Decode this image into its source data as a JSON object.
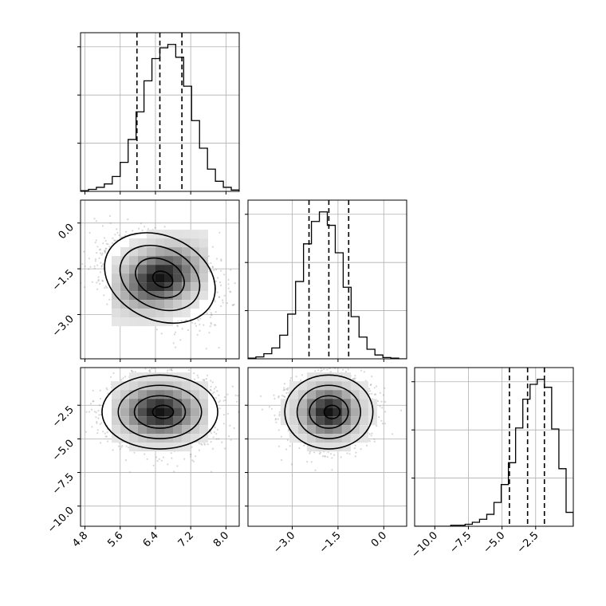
{
  "chart_data": {
    "type": "corner",
    "grid": true,
    "params": [
      {
        "range": [
          4.7,
          8.3
        ],
        "ticks": [
          "4.8",
          "5.6",
          "6.4",
          "7.2",
          "8.0"
        ],
        "tickvals": [
          4.8,
          5.6,
          6.4,
          7.2,
          8.0
        ],
        "quantiles": [
          5.98,
          6.5,
          7.0
        ]
      },
      {
        "range": [
          -4.45,
          0.75
        ],
        "ticks": [
          "0.0",
          "−1.5",
          "−3.0"
        ],
        "tickvals": [
          0.0,
          -1.5,
          -3.0
        ],
        "xticks": [
          "−3.0",
          "−1.5",
          "0.0"
        ],
        "xtickvals": [
          -3.0,
          -1.5,
          0.0
        ],
        "quantiles": [
          -2.45,
          -1.8,
          -1.15
        ]
      },
      {
        "range": [
          -11.5,
          0.3
        ],
        "ticks": [
          "−2.5",
          "−5.0",
          "−7.5",
          "−10.0"
        ],
        "tickvals": [
          -2.5,
          -5.0,
          -7.5,
          -10.0
        ],
        "xticks": [
          "−10.0",
          "−7.5",
          "−5.0",
          "−2.5"
        ],
        "xtickvals": [
          -10.0,
          -7.5,
          -5.0,
          -2.5
        ],
        "quantiles": [
          -4.45,
          -3.1,
          -1.85
        ]
      }
    ],
    "histograms": [
      {
        "edges": [
          4.7,
          8.3
        ],
        "counts": [
          1,
          3,
          6,
          11,
          22,
          43,
          77,
          118,
          164,
          197,
          213,
          218,
          199,
          156,
          105,
          64,
          33,
          15,
          6,
          2
        ]
      },
      {
        "edges": [
          -4.45,
          0.75
        ],
        "counts": [
          1,
          3,
          8,
          17,
          37,
          70,
          121,
          180,
          215,
          230,
          209,
          166,
          112,
          66,
          34,
          15,
          6,
          2,
          1,
          0
        ]
      },
      {
        "edges": [
          -11.5,
          0.3
        ],
        "counts": [
          0,
          0,
          0,
          0,
          0,
          1,
          1,
          2,
          4,
          7,
          12,
          24,
          42,
          64,
          99,
          128,
          143,
          148,
          140,
          98,
          58,
          14
        ]
      }
    ]
  }
}
